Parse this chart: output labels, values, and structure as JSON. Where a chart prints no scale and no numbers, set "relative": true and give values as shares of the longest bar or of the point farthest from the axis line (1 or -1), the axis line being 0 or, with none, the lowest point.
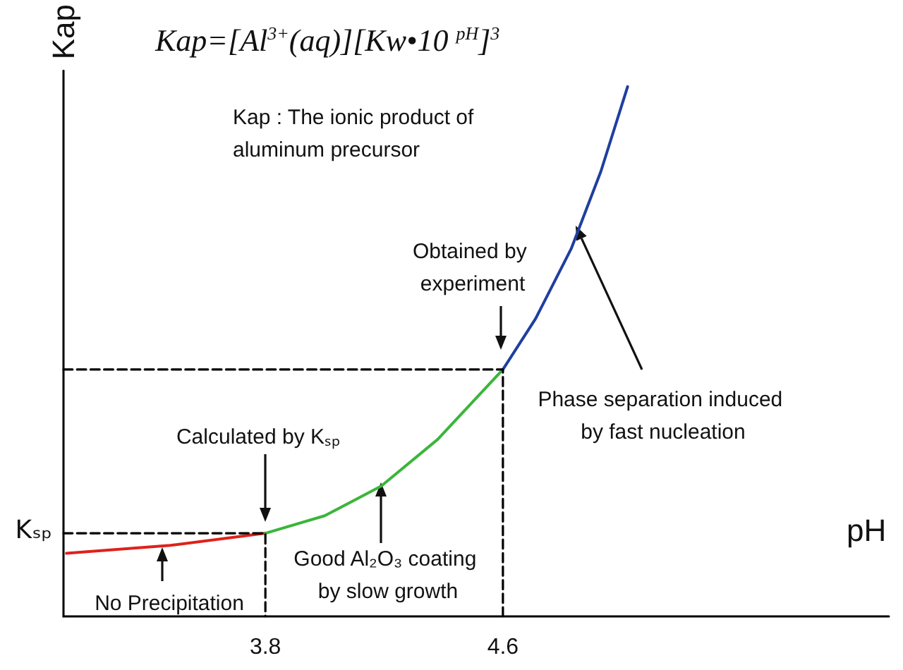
{
  "chart_data": {
    "type": "line",
    "title": "Kap=[Al$^{3+}$(aq)][Kw•10 $^{pH}$]$^{3}$",
    "xlabel": "pH",
    "ylabel": "Kap",
    "relative": true,
    "xlim": [
      3.12,
      5.9
    ],
    "xticks": [
      3.8,
      4.6
    ],
    "marker": "none",
    "line_style": "solid",
    "grid": false,
    "series": [
      {
        "color": "#e0201b",
        "x": [
          3.13,
          3.48,
          3.8
        ],
        "values": [
          0.119,
          0.134,
          0.157
        ]
      },
      {
        "color": "#3bb53b",
        "x": [
          3.8,
          4.0,
          4.19,
          4.38,
          4.6
        ],
        "values": [
          0.157,
          0.19,
          0.246,
          0.334,
          0.466
        ]
      },
      {
        "color": "#1f3f9f",
        "x": [
          4.6,
          4.71,
          4.83,
          4.93,
          5.02
        ],
        "values": [
          0.466,
          0.562,
          0.694,
          0.84,
          1.0
        ]
      },
      {
        "color": "#000000",
        "line_style": "dashed",
        "x": [
          3.12,
          3.8,
          3.8
        ],
        "values": [
          0.157,
          0.157,
          0
        ]
      },
      {
        "color": "#000000",
        "line_style": "dashed",
        "x": [
          3.12,
          4.6,
          4.6
        ],
        "values": [
          0.466,
          0.466,
          0
        ]
      }
    ],
    "annotations": [
      "Kap : The ionic product of aluminum precursor",
      {
        "text": "Kₛₚ",
        "x": 3.12,
        "y": 0.157
      },
      "Calculated by Kₛₚ",
      "Obtained by experiment",
      "Phase separation induced by fast nucleation",
      "Good Al₂O₃ coating by slow growth",
      "No Precipitation"
    ]
  }
}
